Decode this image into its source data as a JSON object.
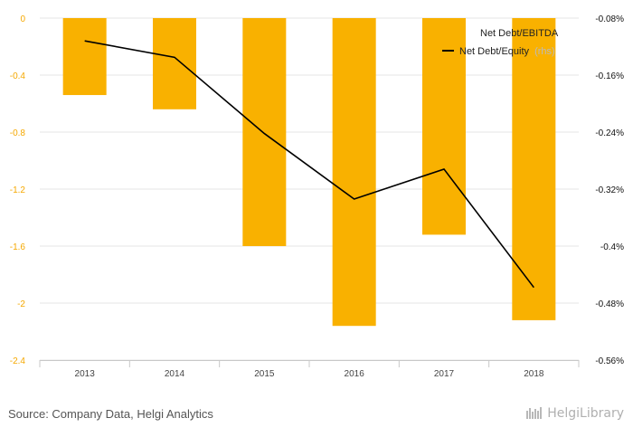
{
  "chart_data": {
    "type": "bar",
    "categories": [
      "2013",
      "2014",
      "2015",
      "2016",
      "2017",
      "2018"
    ],
    "series": [
      {
        "name": "Net Debt/EBITDA",
        "type": "bar",
        "axis": "left",
        "color": "#f9b100",
        "values": [
          -0.54,
          -0.64,
          -1.6,
          -2.16,
          -1.52,
          -2.12
        ]
      },
      {
        "name": "Net Debt/Equity",
        "type": "line",
        "axis": "right",
        "color": "#000000",
        "values": [
          -0.112,
          -0.135,
          -0.242,
          -0.334,
          -0.292,
          -0.458
        ]
      }
    ],
    "y_left": {
      "ylim": [
        -2.4,
        0
      ],
      "ticks": [
        0,
        -0.4,
        -0.8,
        -1.2,
        -1.6,
        -2,
        -2.4
      ],
      "tick_labels": [
        "0",
        "-0.4",
        "-0.8",
        "-1.2",
        "-1.6",
        "-2",
        "-2.4"
      ]
    },
    "y_right": {
      "ylim": [
        -0.56,
        -0.08
      ],
      "ticks": [
        -0.08,
        -0.16,
        -0.24,
        -0.32,
        -0.4,
        -0.48,
        -0.56
      ],
      "tick_labels": [
        "-0.08%",
        "-0.16%",
        "-0.24%",
        "-0.32%",
        "-0.4%",
        "-0.48%",
        "-0.56%"
      ]
    },
    "legend": {
      "placement": "top-right",
      "items": [
        "Net Debt/EBITDA",
        "Net Debt/Equity"
      ],
      "secondary_suffix": "(rhs)"
    },
    "grid": true
  },
  "footer": {
    "source": "Source: Company Data, Helgi Analytics",
    "brand": "HelgiLibrary"
  }
}
